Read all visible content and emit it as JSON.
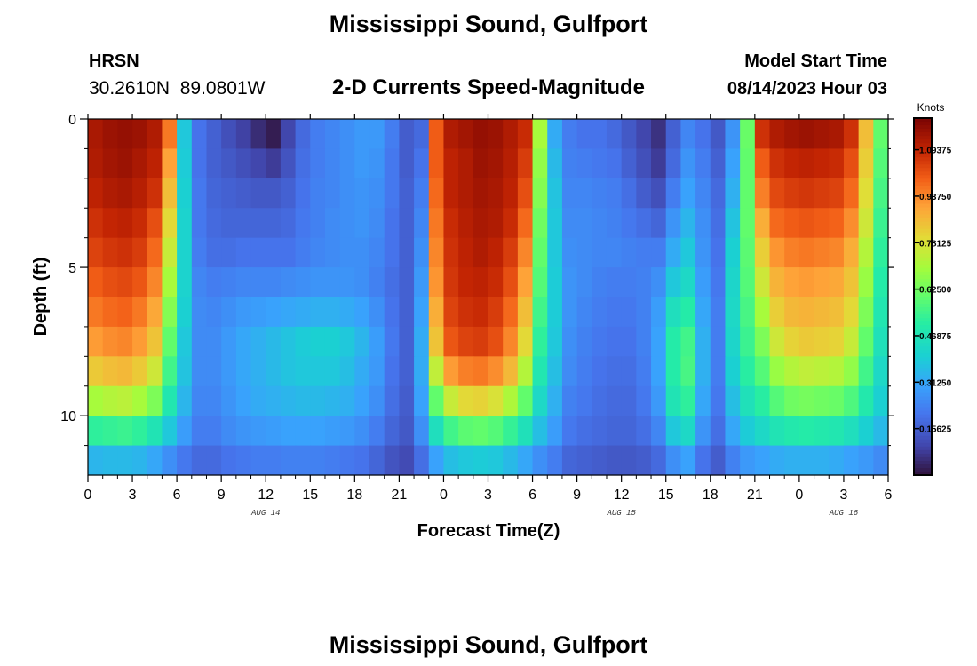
{
  "chart_data": {
    "type": "heatmap",
    "title": "Mississippi Sound, Gulfport",
    "station": {
      "id": "HRSN",
      "location": "30.2610N  89.0801W"
    },
    "subtitle": "2-D Currents Speed-Magnitude",
    "model_start": {
      "label": "Model Start Time",
      "value": "08/14/2023 Hour 03"
    },
    "xlabel": "Forecast Time(Z)",
    "ylabel": "Depth (ft)",
    "x_ticks": [
      "0",
      "3",
      "6",
      "9",
      "12",
      "15",
      "18",
      "21",
      "0",
      "3",
      "6",
      "9",
      "12",
      "15",
      "18",
      "21",
      "0",
      "3",
      "6"
    ],
    "date_labels": [
      {
        "text": "AUG 14",
        "hour": 12
      },
      {
        "text": "AUG 15",
        "hour": 36
      },
      {
        "text": "AUG 16",
        "hour": 51
      }
    ],
    "y_ticks": [
      {
        "value": 0,
        "label": "0"
      },
      {
        "value": 5,
        "label": "5"
      },
      {
        "value": 10,
        "label": "10"
      }
    ],
    "xlim_hours": [
      0,
      54
    ],
    "ylim_depth_ft": [
      0,
      12
    ],
    "colorbar": {
      "unit": "Knots",
      "ticks": [
        "1.09375",
        "0.93750",
        "0.78125",
        "0.62500",
        "0.46875",
        "0.31250",
        "0.15625"
      ],
      "tick_values": [
        1.09375,
        0.9375,
        0.78125,
        0.625,
        0.46875,
        0.3125,
        0.15625
      ],
      "range": [
        0,
        1.2
      ]
    },
    "grid": {
      "hours": [
        0,
        1,
        2,
        3,
        4,
        5,
        6,
        7,
        8,
        9,
        10,
        11,
        12,
        13,
        14,
        15,
        16,
        17,
        18,
        19,
        20,
        21,
        22,
        23,
        24,
        25,
        26,
        27,
        28,
        29,
        30,
        31,
        32,
        33,
        34,
        35,
        36,
        37,
        38,
        39,
        40,
        41,
        42,
        43,
        44,
        45,
        46,
        47,
        48,
        49,
        50,
        51,
        52,
        53
      ],
      "depths_ft": [
        0,
        1,
        2,
        3,
        4,
        5,
        6,
        7,
        8,
        9,
        10,
        11
      ],
      "speed_knots": [
        [
          1.13,
          1.15,
          1.16,
          1.15,
          1.12,
          0.96,
          0.38,
          0.2,
          0.16,
          0.12,
          0.09,
          0.05,
          0.02,
          0.1,
          0.18,
          0.22,
          0.24,
          0.26,
          0.28,
          0.28,
          0.22,
          0.15,
          0.18,
          1.0,
          1.12,
          1.14,
          1.16,
          1.15,
          1.12,
          1.08,
          0.7,
          0.32,
          0.22,
          0.2,
          0.2,
          0.18,
          0.14,
          0.1,
          0.06,
          0.16,
          0.24,
          0.2,
          0.14,
          0.27,
          0.61,
          1.07,
          1.12,
          1.14,
          1.15,
          1.14,
          1.13,
          1.07,
          0.85,
          0.6
        ],
        [
          1.12,
          1.14,
          1.15,
          1.13,
          1.1,
          0.9,
          0.39,
          0.2,
          0.16,
          0.14,
          0.12,
          0.1,
          0.08,
          0.13,
          0.19,
          0.22,
          0.24,
          0.26,
          0.28,
          0.27,
          0.21,
          0.15,
          0.2,
          1.0,
          1.1,
          1.12,
          1.15,
          1.14,
          1.11,
          1.05,
          0.67,
          0.35,
          0.23,
          0.22,
          0.21,
          0.2,
          0.16,
          0.12,
          0.08,
          0.18,
          0.27,
          0.22,
          0.16,
          0.3,
          0.6,
          1.0,
          1.07,
          1.09,
          1.1,
          1.09,
          1.08,
          1.02,
          0.82,
          0.58
        ],
        [
          1.1,
          1.12,
          1.13,
          1.11,
          1.07,
          0.85,
          0.4,
          0.21,
          0.17,
          0.16,
          0.15,
          0.14,
          0.14,
          0.16,
          0.2,
          0.23,
          0.24,
          0.26,
          0.27,
          0.26,
          0.21,
          0.16,
          0.22,
          0.98,
          1.1,
          1.12,
          1.14,
          1.13,
          1.1,
          1.02,
          0.65,
          0.37,
          0.24,
          0.24,
          0.23,
          0.22,
          0.19,
          0.15,
          0.12,
          0.22,
          0.3,
          0.24,
          0.18,
          0.33,
          0.6,
          0.95,
          1.03,
          1.05,
          1.06,
          1.05,
          1.04,
          0.98,
          0.79,
          0.56
        ],
        [
          1.07,
          1.09,
          1.1,
          1.08,
          1.02,
          0.8,
          0.41,
          0.21,
          0.18,
          0.17,
          0.17,
          0.17,
          0.17,
          0.18,
          0.21,
          0.23,
          0.25,
          0.26,
          0.27,
          0.25,
          0.2,
          0.16,
          0.24,
          0.96,
          1.08,
          1.11,
          1.13,
          1.12,
          1.08,
          0.98,
          0.62,
          0.38,
          0.25,
          0.25,
          0.24,
          0.23,
          0.21,
          0.19,
          0.17,
          0.27,
          0.34,
          0.26,
          0.19,
          0.37,
          0.6,
          0.88,
          0.98,
          1.0,
          1.01,
          1.0,
          0.99,
          0.93,
          0.76,
          0.54
        ],
        [
          1.04,
          1.06,
          1.07,
          1.05,
          0.98,
          0.75,
          0.41,
          0.22,
          0.19,
          0.19,
          0.2,
          0.2,
          0.2,
          0.2,
          0.22,
          0.24,
          0.25,
          0.26,
          0.26,
          0.24,
          0.2,
          0.16,
          0.26,
          0.94,
          1.07,
          1.1,
          1.12,
          1.1,
          1.05,
          0.94,
          0.6,
          0.38,
          0.26,
          0.25,
          0.24,
          0.24,
          0.23,
          0.22,
          0.22,
          0.32,
          0.38,
          0.27,
          0.2,
          0.4,
          0.59,
          0.82,
          0.92,
          0.95,
          0.96,
          0.95,
          0.94,
          0.88,
          0.72,
          0.52
        ],
        [
          1.0,
          1.02,
          1.03,
          1.01,
          0.94,
          0.7,
          0.41,
          0.24,
          0.22,
          0.23,
          0.24,
          0.24,
          0.24,
          0.25,
          0.26,
          0.27,
          0.27,
          0.27,
          0.26,
          0.23,
          0.19,
          0.16,
          0.28,
          0.92,
          1.06,
          1.09,
          1.1,
          1.08,
          1.02,
          0.9,
          0.58,
          0.39,
          0.27,
          0.25,
          0.23,
          0.22,
          0.22,
          0.23,
          0.26,
          0.38,
          0.43,
          0.29,
          0.21,
          0.42,
          0.58,
          0.76,
          0.87,
          0.9,
          0.91,
          0.9,
          0.89,
          0.84,
          0.68,
          0.5
        ],
        [
          0.96,
          0.98,
          0.99,
          0.96,
          0.89,
          0.65,
          0.4,
          0.25,
          0.24,
          0.26,
          0.28,
          0.29,
          0.3,
          0.31,
          0.32,
          0.33,
          0.33,
          0.32,
          0.3,
          0.26,
          0.2,
          0.16,
          0.3,
          0.88,
          1.04,
          1.07,
          1.08,
          1.05,
          0.98,
          0.85,
          0.55,
          0.39,
          0.27,
          0.24,
          0.22,
          0.21,
          0.21,
          0.23,
          0.29,
          0.45,
          0.5,
          0.31,
          0.22,
          0.43,
          0.56,
          0.7,
          0.82,
          0.86,
          0.87,
          0.86,
          0.85,
          0.8,
          0.64,
          0.48
        ],
        [
          0.91,
          0.93,
          0.94,
          0.91,
          0.84,
          0.6,
          0.38,
          0.25,
          0.25,
          0.28,
          0.31,
          0.33,
          0.35,
          0.37,
          0.39,
          0.4,
          0.4,
          0.38,
          0.34,
          0.29,
          0.21,
          0.16,
          0.32,
          0.84,
          1.01,
          1.04,
          1.05,
          1.02,
          0.94,
          0.8,
          0.52,
          0.38,
          0.26,
          0.23,
          0.21,
          0.2,
          0.2,
          0.23,
          0.3,
          0.5,
          0.55,
          0.33,
          0.22,
          0.42,
          0.54,
          0.64,
          0.76,
          0.81,
          0.83,
          0.82,
          0.81,
          0.75,
          0.6,
          0.46
        ],
        [
          0.83,
          0.85,
          0.86,
          0.83,
          0.76,
          0.55,
          0.37,
          0.25,
          0.25,
          0.28,
          0.31,
          0.33,
          0.35,
          0.37,
          0.38,
          0.38,
          0.38,
          0.36,
          0.32,
          0.28,
          0.2,
          0.16,
          0.32,
          0.74,
          0.91,
          0.95,
          0.96,
          0.93,
          0.86,
          0.72,
          0.48,
          0.36,
          0.25,
          0.22,
          0.2,
          0.19,
          0.19,
          0.22,
          0.3,
          0.5,
          0.56,
          0.33,
          0.22,
          0.4,
          0.51,
          0.58,
          0.68,
          0.72,
          0.74,
          0.73,
          0.72,
          0.67,
          0.55,
          0.43
        ],
        [
          0.7,
          0.72,
          0.73,
          0.7,
          0.64,
          0.48,
          0.34,
          0.24,
          0.24,
          0.27,
          0.3,
          0.32,
          0.33,
          0.34,
          0.35,
          0.35,
          0.34,
          0.33,
          0.3,
          0.26,
          0.19,
          0.15,
          0.3,
          0.6,
          0.75,
          0.8,
          0.81,
          0.78,
          0.71,
          0.6,
          0.43,
          0.33,
          0.23,
          0.21,
          0.19,
          0.18,
          0.18,
          0.21,
          0.28,
          0.47,
          0.52,
          0.31,
          0.21,
          0.36,
          0.46,
          0.51,
          0.58,
          0.62,
          0.63,
          0.62,
          0.61,
          0.57,
          0.49,
          0.4
        ],
        [
          0.52,
          0.53,
          0.54,
          0.52,
          0.47,
          0.38,
          0.29,
          0.22,
          0.22,
          0.25,
          0.27,
          0.28,
          0.29,
          0.3,
          0.3,
          0.3,
          0.29,
          0.28,
          0.26,
          0.22,
          0.17,
          0.14,
          0.26,
          0.45,
          0.55,
          0.59,
          0.6,
          0.58,
          0.53,
          0.46,
          0.36,
          0.29,
          0.21,
          0.19,
          0.18,
          0.17,
          0.17,
          0.19,
          0.24,
          0.38,
          0.43,
          0.27,
          0.19,
          0.31,
          0.39,
          0.43,
          0.47,
          0.49,
          0.5,
          0.49,
          0.48,
          0.45,
          0.4,
          0.35
        ],
        [
          0.34,
          0.35,
          0.35,
          0.34,
          0.31,
          0.26,
          0.21,
          0.18,
          0.18,
          0.2,
          0.21,
          0.22,
          0.22,
          0.23,
          0.23,
          0.23,
          0.22,
          0.21,
          0.2,
          0.17,
          0.13,
          0.11,
          0.19,
          0.3,
          0.36,
          0.38,
          0.39,
          0.38,
          0.35,
          0.31,
          0.26,
          0.22,
          0.17,
          0.16,
          0.15,
          0.14,
          0.14,
          0.15,
          0.18,
          0.26,
          0.3,
          0.2,
          0.15,
          0.23,
          0.28,
          0.3,
          0.32,
          0.33,
          0.33,
          0.33,
          0.32,
          0.3,
          0.28,
          0.25
        ]
      ]
    }
  },
  "footer_title": "Mississippi Sound, Gulfport"
}
